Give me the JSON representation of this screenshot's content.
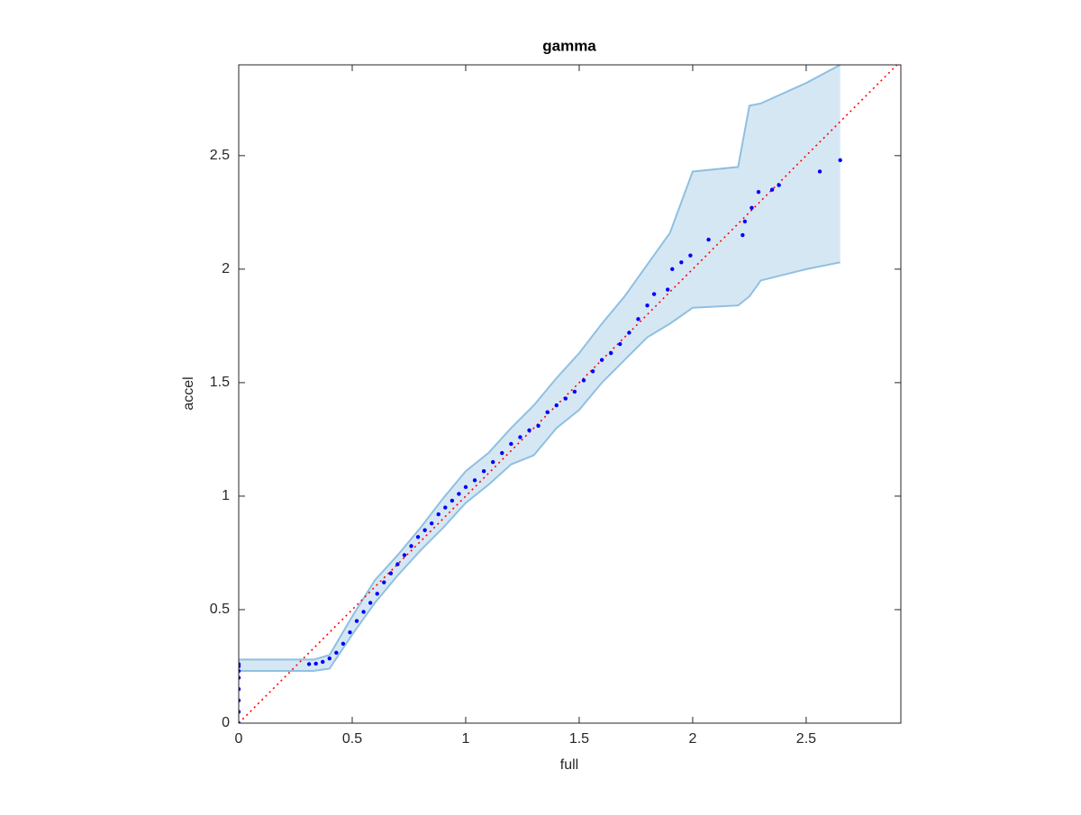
{
  "chart_data": {
    "type": "scatter",
    "title": "gamma",
    "x_label": "full",
    "y_label": "accel",
    "color": "#0000ff",
    "x": [
      0,
      0,
      0,
      0,
      0,
      0,
      0,
      0,
      0.31,
      0.34,
      0.37,
      0.4,
      0.43,
      0.46,
      0.49,
      0.52,
      0.55,
      0.58,
      0.61,
      0.64,
      0.67,
      0.7,
      0.73,
      0.76,
      0.79,
      0.82,
      0.85,
      0.88,
      0.91,
      0.94,
      0.97,
      1.0,
      1.04,
      1.08,
      1.12,
      1.16,
      1.2,
      1.24,
      1.28,
      1.32,
      1.36,
      1.4,
      1.44,
      1.48,
      1.52,
      1.56,
      1.6,
      1.64,
      1.68,
      1.72,
      1.76,
      1.8,
      1.83,
      1.89,
      1.91,
      1.95,
      1.99,
      2.07,
      2.22,
      2.23,
      2.26,
      2.29,
      2.35,
      2.38,
      2.56,
      2.65
    ],
    "y": [
      0,
      0.05,
      0.1,
      0.15,
      0.2,
      0.23,
      0.25,
      0.26,
      0.26,
      0.262,
      0.27,
      0.285,
      0.31,
      0.35,
      0.4,
      0.45,
      0.49,
      0.53,
      0.57,
      0.62,
      0.66,
      0.7,
      0.74,
      0.78,
      0.82,
      0.85,
      0.88,
      0.92,
      0.95,
      0.98,
      1.01,
      1.04,
      1.07,
      1.11,
      1.15,
      1.19,
      1.23,
      1.26,
      1.29,
      1.31,
      1.37,
      1.4,
      1.43,
      1.46,
      1.51,
      1.55,
      1.6,
      1.63,
      1.67,
      1.72,
      1.78,
      1.84,
      1.89,
      1.91,
      2.0,
      2.03,
      2.06,
      2.13,
      2.15,
      2.21,
      2.27,
      2.34,
      2.35,
      2.37,
      2.43,
      2.48
    ],
    "band": {
      "fill": "#d6e7f4",
      "stroke": "#8fc0e0",
      "x": [
        0,
        0.33,
        0.4,
        0.5,
        0.6,
        0.7,
        0.8,
        0.9,
        1.0,
        1.1,
        1.2,
        1.3,
        1.4,
        1.5,
        1.6,
        1.7,
        1.8,
        1.9,
        2.0,
        2.2,
        2.25,
        2.3,
        2.5,
        2.65
      ],
      "lower": [
        0.23,
        0.23,
        0.24,
        0.39,
        0.53,
        0.65,
        0.76,
        0.86,
        0.97,
        1.05,
        1.14,
        1.18,
        1.3,
        1.38,
        1.5,
        1.6,
        1.7,
        1.76,
        1.83,
        1.84,
        1.88,
        1.95,
        2.0,
        2.03
      ],
      "upper": [
        0.28,
        0.28,
        0.3,
        0.47,
        0.63,
        0.74,
        0.86,
        0.99,
        1.11,
        1.19,
        1.3,
        1.4,
        1.52,
        1.63,
        1.76,
        1.88,
        2.02,
        2.16,
        2.43,
        2.45,
        2.72,
        2.73,
        2.82,
        2.9
      ]
    },
    "reference_line": {
      "color": "#ff0000",
      "x": [
        0,
        2.917
      ],
      "y": [
        0,
        2.917
      ]
    },
    "xlim": [
      0,
      2.917
    ],
    "ylim": [
      0,
      2.9
    ],
    "xticks": [
      0,
      0.5,
      1,
      1.5,
      2,
      2.5
    ],
    "yticks": [
      0,
      0.5,
      1,
      1.5,
      2,
      2.5
    ]
  }
}
